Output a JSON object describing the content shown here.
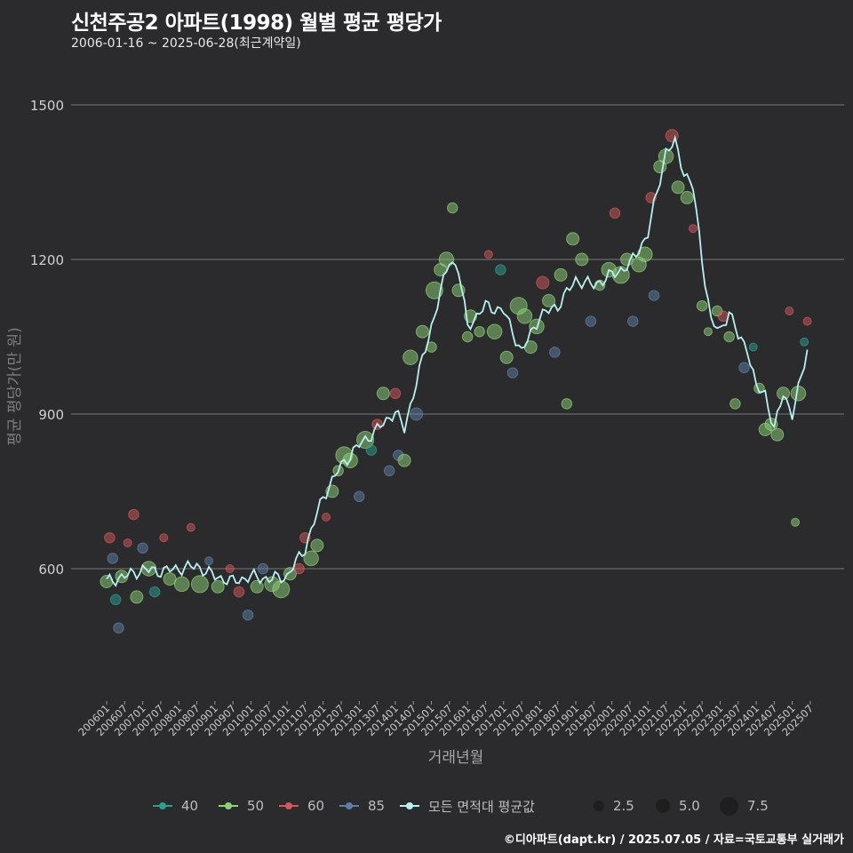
{
  "title": "신천주공2 아파트(1998) 월별 평균 평당가",
  "subtitle": "2006-01-16 ~ 2025-06-28(최근계약일)",
  "footer": "©디아파트(dapt.kr) / 2025.07.05 / 자료=국토교통부 실거래가",
  "legend": {
    "series": [
      {
        "label": "40",
        "color": "#2e9e8f"
      },
      {
        "label": "50",
        "color": "#8fd17a"
      },
      {
        "label": "60",
        "color": "#d2575c"
      },
      {
        "label": "85",
        "color": "#5f7fa6"
      },
      {
        "label": "모든 면적대 평균값",
        "color": "#b8f0f0"
      }
    ],
    "sizes": [
      "2.5",
      "5.0",
      "7.5"
    ]
  },
  "chart_data": {
    "type": "scatter",
    "title": "신천주공2 아파트(1998) 월별 평균 평당가",
    "xlabel": "거래년월",
    "ylabel": "평균 평당가(만 원)",
    "ylim": [
      350,
      1600
    ],
    "yticks": [
      600,
      900,
      1200,
      1500
    ],
    "xticks": [
      "200601",
      "200607",
      "200701",
      "200707",
      "200801",
      "200807",
      "200901",
      "200907",
      "201001",
      "201007",
      "201101",
      "201107",
      "201201",
      "201207",
      "201301",
      "201307",
      "201401",
      "201407",
      "201501",
      "201507",
      "201601",
      "201607",
      "201701",
      "201707",
      "201801",
      "201807",
      "201901",
      "201907",
      "202001",
      "202007",
      "202101",
      "202107",
      "202201",
      "202207",
      "202301",
      "202307",
      "202401",
      "202407",
      "202501",
      "202507"
    ],
    "average_line": {
      "name": "모든 면적대 평균값",
      "anchors": [
        [
          "2006-01",
          575
        ],
        [
          "2006-07",
          585
        ],
        [
          "2007-01",
          598
        ],
        [
          "2007-07",
          595
        ],
        [
          "2008-01",
          600
        ],
        [
          "2008-07",
          605
        ],
        [
          "2009-01",
          585
        ],
        [
          "2009-07",
          575
        ],
        [
          "2010-01",
          585
        ],
        [
          "2010-07",
          580
        ],
        [
          "2011-01",
          585
        ],
        [
          "2011-07",
          640
        ],
        [
          "2012-01",
          740
        ],
        [
          "2012-07",
          800
        ],
        [
          "2013-01",
          840
        ],
        [
          "2013-07",
          870
        ],
        [
          "2014-01",
          905
        ],
        [
          "2014-04",
          870
        ],
        [
          "2014-07",
          940
        ],
        [
          "2015-01",
          1070
        ],
        [
          "2015-07",
          1200
        ],
        [
          "2015-10",
          1180
        ],
        [
          "2016-01",
          1070
        ],
        [
          "2016-07",
          1110
        ],
        [
          "2017-01",
          1100
        ],
        [
          "2017-07",
          1020
        ],
        [
          "2018-01",
          1090
        ],
        [
          "2018-07",
          1110
        ],
        [
          "2019-01",
          1160
        ],
        [
          "2019-07",
          1150
        ],
        [
          "2020-01",
          1170
        ],
        [
          "2020-07",
          1190
        ],
        [
          "2021-01",
          1250
        ],
        [
          "2021-07",
          1410
        ],
        [
          "2021-10",
          1425
        ],
        [
          "2022-01",
          1370
        ],
        [
          "2022-04",
          1340
        ],
        [
          "2022-07",
          1200
        ],
        [
          "2022-10",
          1080
        ],
        [
          "2023-01",
          1060
        ],
        [
          "2023-04",
          1100
        ],
        [
          "2023-07",
          1050
        ],
        [
          "2023-10",
          1030
        ],
        [
          "2024-01",
          950
        ],
        [
          "2024-04",
          940
        ],
        [
          "2024-07",
          870
        ],
        [
          "2024-10",
          940
        ],
        [
          "2025-01",
          900
        ],
        [
          "2025-04",
          970
        ],
        [
          "2025-06",
          1025
        ]
      ]
    },
    "scatter_points": [
      [
        "2006-01",
        575,
        "50",
        4
      ],
      [
        "2006-02",
        660,
        "60",
        3
      ],
      [
        "2006-03",
        620,
        "85",
        3
      ],
      [
        "2006-04",
        540,
        "40",
        3
      ],
      [
        "2006-05",
        485,
        "85",
        3
      ],
      [
        "2006-06",
        585,
        "50",
        4
      ],
      [
        "2006-08",
        650,
        "60",
        2
      ],
      [
        "2006-10",
        705,
        "60",
        3
      ],
      [
        "2006-11",
        545,
        "50",
        4
      ],
      [
        "2007-01",
        640,
        "85",
        3
      ],
      [
        "2007-03",
        600,
        "50",
        5
      ],
      [
        "2007-05",
        555,
        "40",
        3
      ],
      [
        "2007-08",
        660,
        "60",
        2
      ],
      [
        "2007-10",
        580,
        "50",
        4
      ],
      [
        "2008-02",
        570,
        "50",
        5
      ],
      [
        "2008-05",
        680,
        "60",
        2
      ],
      [
        "2008-08",
        570,
        "50",
        6
      ],
      [
        "2008-11",
        615,
        "85",
        2
      ],
      [
        "2009-02",
        565,
        "50",
        4
      ],
      [
        "2009-06",
        600,
        "60",
        2
      ],
      [
        "2009-09",
        555,
        "60",
        3
      ],
      [
        "2009-12",
        510,
        "85",
        3
      ],
      [
        "2010-03",
        565,
        "50",
        4
      ],
      [
        "2010-05",
        600,
        "85",
        3
      ],
      [
        "2010-08",
        570,
        "50",
        5
      ],
      [
        "2010-11",
        560,
        "50",
        6
      ],
      [
        "2011-02",
        590,
        "50",
        4
      ],
      [
        "2011-05",
        600,
        "60",
        3
      ],
      [
        "2011-07",
        660,
        "60",
        3
      ],
      [
        "2011-09",
        620,
        "50",
        5
      ],
      [
        "2011-11",
        645,
        "50",
        4
      ],
      [
        "2012-02",
        700,
        "60",
        2
      ],
      [
        "2012-04",
        750,
        "50",
        4
      ],
      [
        "2012-06",
        790,
        "50",
        3
      ],
      [
        "2012-08",
        820,
        "50",
        6
      ],
      [
        "2012-10",
        810,
        "50",
        5
      ],
      [
        "2013-01",
        740,
        "85",
        3
      ],
      [
        "2013-03",
        850,
        "50",
        6
      ],
      [
        "2013-05",
        830,
        "40",
        3
      ],
      [
        "2013-07",
        880,
        "60",
        3
      ],
      [
        "2013-09",
        940,
        "50",
        4
      ],
      [
        "2013-11",
        790,
        "85",
        3
      ],
      [
        "2014-01",
        940,
        "60",
        3
      ],
      [
        "2014-02",
        820,
        "85",
        3
      ],
      [
        "2014-04",
        810,
        "50",
        4
      ],
      [
        "2014-06",
        1010,
        "50",
        5
      ],
      [
        "2014-08",
        900,
        "85",
        4
      ],
      [
        "2014-10",
        1060,
        "50",
        4
      ],
      [
        "2015-01",
        1030,
        "50",
        3
      ],
      [
        "2015-02",
        1140,
        "50",
        6
      ],
      [
        "2015-04",
        1180,
        "50",
        4
      ],
      [
        "2015-06",
        1200,
        "50",
        5
      ],
      [
        "2015-08",
        1300,
        "50",
        3
      ],
      [
        "2015-10",
        1140,
        "50",
        4
      ],
      [
        "2016-01",
        1050,
        "50",
        3
      ],
      [
        "2016-02",
        1090,
        "50",
        4
      ],
      [
        "2016-05",
        1060,
        "50",
        3
      ],
      [
        "2016-08",
        1210,
        "60",
        2
      ],
      [
        "2016-10",
        1060,
        "50",
        5
      ],
      [
        "2016-12",
        1180,
        "40",
        3
      ],
      [
        "2017-02",
        1010,
        "50",
        4
      ],
      [
        "2017-04",
        980,
        "85",
        3
      ],
      [
        "2017-06",
        1110,
        "50",
        6
      ],
      [
        "2017-08",
        1090,
        "50",
        5
      ],
      [
        "2017-10",
        1030,
        "50",
        4
      ],
      [
        "2017-12",
        1070,
        "50",
        5
      ],
      [
        "2018-02",
        1155,
        "60",
        4
      ],
      [
        "2018-04",
        1120,
        "50",
        4
      ],
      [
        "2018-06",
        1020,
        "85",
        3
      ],
      [
        "2018-08",
        1170,
        "50",
        4
      ],
      [
        "2018-10",
        920,
        "50",
        3
      ],
      [
        "2018-12",
        1240,
        "50",
        4
      ],
      [
        "2019-03",
        1200,
        "50",
        4
      ],
      [
        "2019-06",
        1080,
        "85",
        3
      ],
      [
        "2019-09",
        1150,
        "50",
        3
      ],
      [
        "2019-12",
        1180,
        "50",
        5
      ],
      [
        "2020-02",
        1290,
        "60",
        3
      ],
      [
        "2020-04",
        1170,
        "50",
        6
      ],
      [
        "2020-06",
        1200,
        "50",
        4
      ],
      [
        "2020-08",
        1080,
        "85",
        3
      ],
      [
        "2020-10",
        1190,
        "50",
        5
      ],
      [
        "2020-12",
        1210,
        "50",
        5
      ],
      [
        "2021-02",
        1320,
        "60",
        3
      ],
      [
        "2021-03",
        1130,
        "85",
        3
      ],
      [
        "2021-05",
        1380,
        "50",
        4
      ],
      [
        "2021-07",
        1400,
        "50",
        5
      ],
      [
        "2021-09",
        1440,
        "60",
        4
      ],
      [
        "2021-11",
        1340,
        "50",
        4
      ],
      [
        "2022-02",
        1320,
        "50",
        4
      ],
      [
        "2022-04",
        1260,
        "60",
        2
      ],
      [
        "2022-07",
        1110,
        "50",
        3
      ],
      [
        "2022-09",
        1060,
        "50",
        2
      ],
      [
        "2022-12",
        1100,
        "50",
        3
      ],
      [
        "2023-02",
        1090,
        "60",
        3
      ],
      [
        "2023-04",
        1050,
        "50",
        3
      ],
      [
        "2023-06",
        920,
        "50",
        3
      ],
      [
        "2023-09",
        990,
        "85",
        3
      ],
      [
        "2023-12",
        1030,
        "40",
        2
      ],
      [
        "2024-02",
        950,
        "50",
        3
      ],
      [
        "2024-04",
        870,
        "50",
        4
      ],
      [
        "2024-06",
        880,
        "50",
        4
      ],
      [
        "2024-08",
        860,
        "50",
        4
      ],
      [
        "2024-10",
        940,
        "50",
        4
      ],
      [
        "2024-12",
        1100,
        "60",
        2
      ],
      [
        "2025-02",
        690,
        "50",
        2
      ],
      [
        "2025-03",
        940,
        "50",
        5
      ],
      [
        "2025-05",
        1040,
        "40",
        2
      ],
      [
        "2025-06",
        1080,
        "60",
        2
      ]
    ]
  }
}
